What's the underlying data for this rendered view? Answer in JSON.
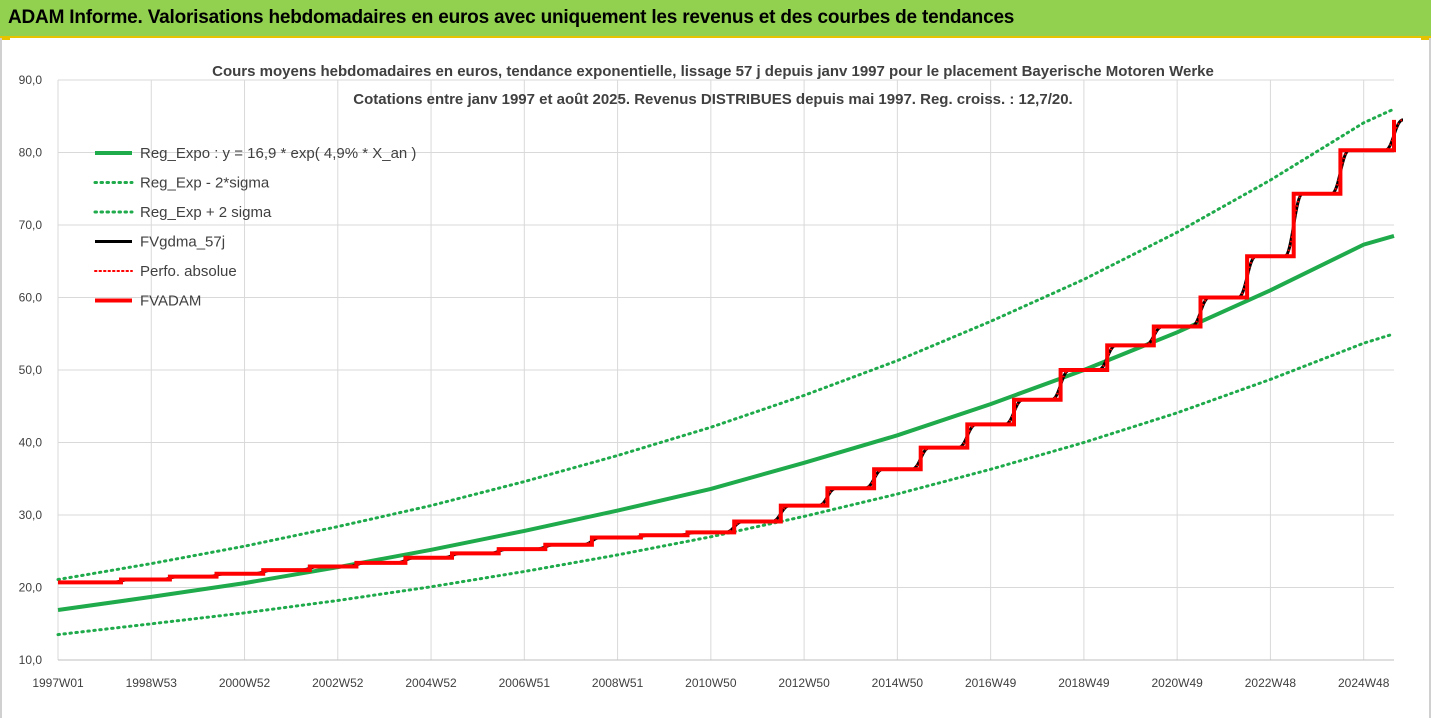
{
  "header": {
    "title": "ADAM Informe. Valorisations hebdomadaires en euros avec uniquement les revenus et des courbes de tendances"
  },
  "colors": {
    "header_bg": "#92d050",
    "green": "#1faa4b",
    "black": "#000000",
    "red": "#ff0000",
    "grid": "#d9d9d9",
    "text": "#404040"
  },
  "chart_data": {
    "type": "line",
    "title": [
      "Cours moyens hebdomadaires en euros, tendance exponentielle, lissage 57 j depuis janv 1997 pour le placement Bayerische Motoren Werke",
      "Cotations entre janv 1997 et août 2025.  Revenus DISTRIBUES depuis mai 1997. Reg. croiss. : 12,7/20."
    ],
    "xlabel": "",
    "ylabel": "",
    "ylim": [
      10,
      90
    ],
    "xlim": [
      1997.0,
      2025.65
    ],
    "grid": true,
    "legend_position": "top-left",
    "y_ticks": [
      "10,0",
      "20,0",
      "30,0",
      "40,0",
      "50,0",
      "60,0",
      "70,0",
      "80,0",
      "90,0"
    ],
    "x_ticks": [
      {
        "label": "1997W01",
        "x": 1997.0
      },
      {
        "label": "1998W53",
        "x": 1999.0
      },
      {
        "label": "2000W52",
        "x": 2001.0
      },
      {
        "label": "2002W52",
        "x": 2003.0
      },
      {
        "label": "2004W52",
        "x": 2005.0
      },
      {
        "label": "2006W51",
        "x": 2007.0
      },
      {
        "label": "2008W51",
        "x": 2009.0
      },
      {
        "label": "2010W50",
        "x": 2011.0
      },
      {
        "label": "2012W50",
        "x": 2013.0
      },
      {
        "label": "2014W50",
        "x": 2015.0
      },
      {
        "label": "2016W49",
        "x": 2017.0
      },
      {
        "label": "2018W49",
        "x": 2019.0
      },
      {
        "label": "2020W49",
        "x": 2021.0
      },
      {
        "label": "2022W48",
        "x": 2023.0
      },
      {
        "label": "2024W48",
        "x": 2025.0
      }
    ],
    "series": [
      {
        "name": "Reg_Expo : y = 16,9 * exp( 4,9% *  X_an )",
        "style": "solid",
        "color": "#1faa4b",
        "x": [
          1997.0,
          1999.0,
          2001.0,
          2003.0,
          2005.0,
          2007.0,
          2009.0,
          2011.0,
          2013.0,
          2015.0,
          2017.0,
          2019.0,
          2021.0,
          2023.0,
          2025.0,
          2025.65
        ],
        "values": [
          16.9,
          18.7,
          20.6,
          22.8,
          25.2,
          27.8,
          30.6,
          33.6,
          37.2,
          41.0,
          45.3,
          50.0,
          55.2,
          61.0,
          67.3,
          68.5
        ]
      },
      {
        "name": "Reg_Exp - 2*sigma",
        "style": "dotted",
        "color": "#1faa4b",
        "x": [
          1997.0,
          1999.0,
          2001.0,
          2003.0,
          2005.0,
          2007.0,
          2009.0,
          2011.0,
          2013.0,
          2015.0,
          2017.0,
          2019.0,
          2021.0,
          2023.0,
          2025.0,
          2025.65
        ],
        "values": [
          13.5,
          15.0,
          16.5,
          18.2,
          20.1,
          22.2,
          24.5,
          27.0,
          29.8,
          32.9,
          36.3,
          40.0,
          44.1,
          48.7,
          53.7,
          55.0
        ]
      },
      {
        "name": "Reg_Exp + 2 sigma",
        "style": "dotted",
        "color": "#1faa4b",
        "x": [
          1997.0,
          1999.0,
          2001.0,
          2003.0,
          2005.0,
          2007.0,
          2009.0,
          2011.0,
          2013.0,
          2015.0,
          2017.0,
          2019.0,
          2021.0,
          2023.0,
          2025.0,
          2025.65
        ],
        "values": [
          21.1,
          23.3,
          25.7,
          28.4,
          31.3,
          34.6,
          38.2,
          42.1,
          46.5,
          51.3,
          56.7,
          62.5,
          69.0,
          76.2,
          84.1,
          86.0
        ]
      },
      {
        "name": "FVgdma_57j",
        "style": "solid",
        "color": "#000000",
        "x": [
          1997.0,
          1998.35,
          1999.4,
          2000.4,
          2001.4,
          2002.4,
          2003.4,
          2004.45,
          2005.45,
          2006.45,
          2007.45,
          2008.45,
          2009.5,
          2010.5,
          2011.5,
          2012.5,
          2013.5,
          2014.5,
          2015.5,
          2016.5,
          2017.5,
          2018.5,
          2019.5,
          2020.5,
          2021.5,
          2022.5,
          2023.5,
          2024.5,
          2025.65
        ],
        "values": [
          20.7,
          21.1,
          21.5,
          21.9,
          22.4,
          22.9,
          23.4,
          24.1,
          24.7,
          25.3,
          25.9,
          26.9,
          27.2,
          27.6,
          29.1,
          31.3,
          33.7,
          36.3,
          39.3,
          42.5,
          45.9,
          50.0,
          53.4,
          56.0,
          60.0,
          65.7,
          74.3,
          80.3,
          84.5
        ]
      },
      {
        "name": "Perfo. absolue",
        "style": "dotted",
        "color": "#ff0000",
        "x": [
          1997.0,
          1998.35,
          1999.4,
          2000.4,
          2001.4,
          2002.4,
          2003.4,
          2004.45,
          2005.45,
          2006.45,
          2007.45,
          2008.45,
          2009.5,
          2010.5,
          2011.5,
          2012.5,
          2013.5,
          2014.5,
          2015.5,
          2016.5,
          2017.5,
          2018.5,
          2019.5,
          2020.5,
          2021.5,
          2022.5,
          2023.5,
          2024.5,
          2025.65
        ],
        "values": [
          20.7,
          21.1,
          21.5,
          21.9,
          22.4,
          22.9,
          23.4,
          24.1,
          24.7,
          25.3,
          25.9,
          26.9,
          27.2,
          27.6,
          29.1,
          31.3,
          33.7,
          36.3,
          39.3,
          42.5,
          45.9,
          50.0,
          53.4,
          56.0,
          60.0,
          65.7,
          74.3,
          80.3,
          84.5
        ]
      },
      {
        "name": "FVADAM",
        "style": "step",
        "color": "#ff0000",
        "x": [
          1997.0,
          1998.35,
          1999.4,
          2000.4,
          2001.4,
          2002.4,
          2003.4,
          2004.45,
          2005.45,
          2006.45,
          2007.45,
          2008.45,
          2009.5,
          2010.5,
          2011.5,
          2012.5,
          2013.5,
          2014.5,
          2015.5,
          2016.5,
          2017.5,
          2018.5,
          2019.5,
          2020.5,
          2021.5,
          2022.5,
          2023.5,
          2024.5,
          2025.65
        ],
        "values": [
          20.7,
          21.1,
          21.5,
          21.9,
          22.4,
          22.9,
          23.4,
          24.1,
          24.7,
          25.3,
          25.9,
          26.9,
          27.2,
          27.6,
          29.1,
          31.3,
          33.7,
          36.3,
          39.3,
          42.5,
          45.9,
          50.0,
          53.4,
          56.0,
          60.0,
          65.7,
          74.3,
          80.3,
          84.5
        ]
      }
    ]
  }
}
